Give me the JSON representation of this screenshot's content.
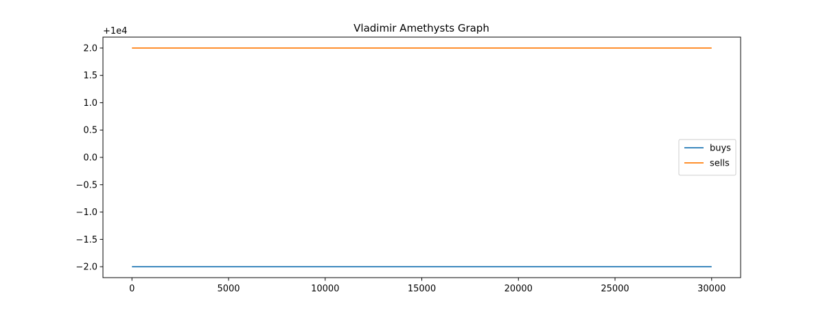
{
  "chart_data": {
    "type": "line",
    "title": "Vladimir Amethysts Graph",
    "offset_label": "+1e4",
    "xlabel": "",
    "ylabel": "",
    "xlim": [
      -1500,
      31500
    ],
    "ylim": [
      -2.2,
      2.2
    ],
    "xticks": [
      0,
      5000,
      10000,
      15000,
      20000,
      25000,
      30000
    ],
    "xtick_labels": [
      "0",
      "5000",
      "10000",
      "15000",
      "20000",
      "25000",
      "30000"
    ],
    "yticks": [
      2.0,
      1.5,
      1.0,
      0.5,
      0.0,
      -0.5,
      -1.0,
      -1.5,
      -2.0
    ],
    "ytick_labels": [
      "2.0",
      "1.5",
      "1.0",
      "0.5",
      "0.0",
      "−0.5",
      "−1.0",
      "−1.5",
      "−2.0"
    ],
    "grid": false,
    "legend_position": "center-right",
    "series": [
      {
        "name": "buys",
        "color": "#1f77b4",
        "x": [
          0,
          30000
        ],
        "y": [
          -2.0,
          -2.0
        ]
      },
      {
        "name": "sells",
        "color": "#ff7f0e",
        "x": [
          0,
          30000
        ],
        "y": [
          2.0,
          2.0
        ]
      }
    ]
  }
}
